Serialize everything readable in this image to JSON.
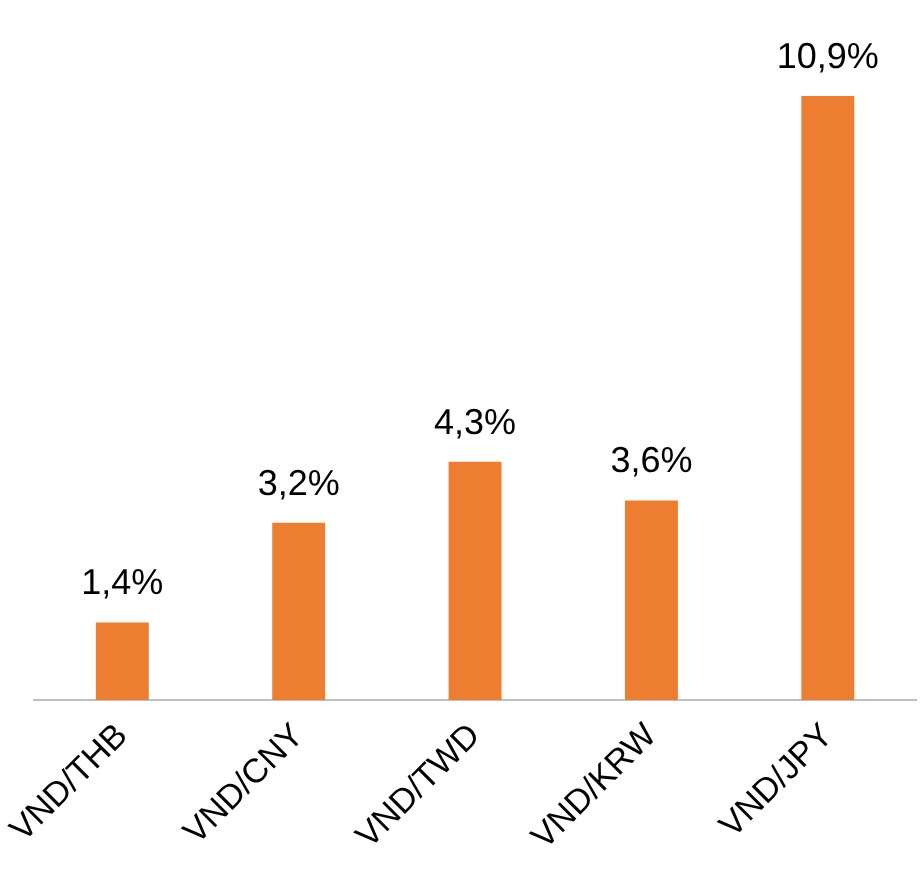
{
  "chart_data": {
    "type": "bar",
    "categories": [
      "VND/THB",
      "VND/CNY",
      "VND/TWD",
      "VND/KRW",
      "VND/JPY"
    ],
    "values": [
      1.4,
      3.2,
      4.3,
      3.6,
      10.9
    ],
    "value_labels": [
      "1,4%",
      "3,2%",
      "4,3%",
      "3,6%",
      "10,9%"
    ],
    "color": "#ed7d31",
    "legend": false,
    "grid": false
  }
}
